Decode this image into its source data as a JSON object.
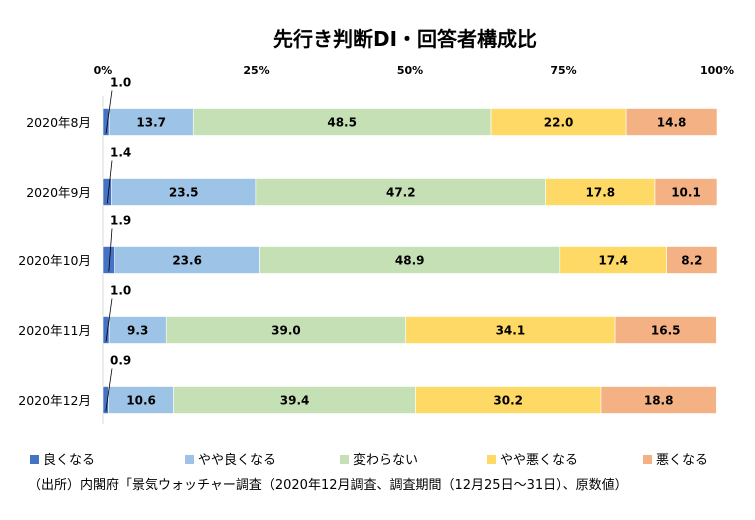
{
  "chart_data": {
    "type": "bar",
    "orientation": "horizontal",
    "stacked": "percent",
    "title": "先行き判断DI・回答者構成比",
    "categories": [
      "2020年8月",
      "2020年9月",
      "2020年10月",
      "2020年11月",
      "2020年12月"
    ],
    "x_ticks": [
      "0%",
      "25%",
      "50%",
      "75%",
      "100%"
    ],
    "xlim": [
      0,
      100
    ],
    "grid": false,
    "legend_position": "bottom",
    "series": [
      {
        "name": "良くなる",
        "color": "#4472c4",
        "values": [
          1.0,
          1.4,
          1.9,
          1.0,
          0.9
        ],
        "labels": [
          "1.0",
          "1.4",
          "1.9",
          "1.0",
          "0.9"
        ]
      },
      {
        "name": "やや良くなる",
        "color": "#9dc3e6",
        "values": [
          13.7,
          23.5,
          23.6,
          9.3,
          10.6
        ],
        "labels": [
          "13.7",
          "23.5",
          "23.6",
          "9.3",
          "10.6"
        ]
      },
      {
        "name": "変わらない",
        "color": "#c5e0b4",
        "values": [
          48.5,
          47.2,
          48.9,
          39.0,
          39.4
        ],
        "labels": [
          "48.5",
          "47.2",
          "48.9",
          "39.0",
          "39.4"
        ]
      },
      {
        "name": "やや悪くなる",
        "color": "#ffd966",
        "values": [
          22.0,
          17.8,
          17.4,
          34.1,
          30.2
        ],
        "labels": [
          "22.0",
          "17.8",
          "17.4",
          "34.1",
          "30.2"
        ]
      },
      {
        "name": "悪くなる",
        "color": "#f4b183",
        "values": [
          14.8,
          10.1,
          8.2,
          16.5,
          18.8
        ],
        "labels": [
          "14.8",
          "10.1",
          "8.2",
          "16.5",
          "18.8"
        ]
      }
    ]
  },
  "source_note": "（出所）内閣府「景気ウォッチャー調査（2020年12月調査、調査期間（12月25日～31日）、原数値）"
}
